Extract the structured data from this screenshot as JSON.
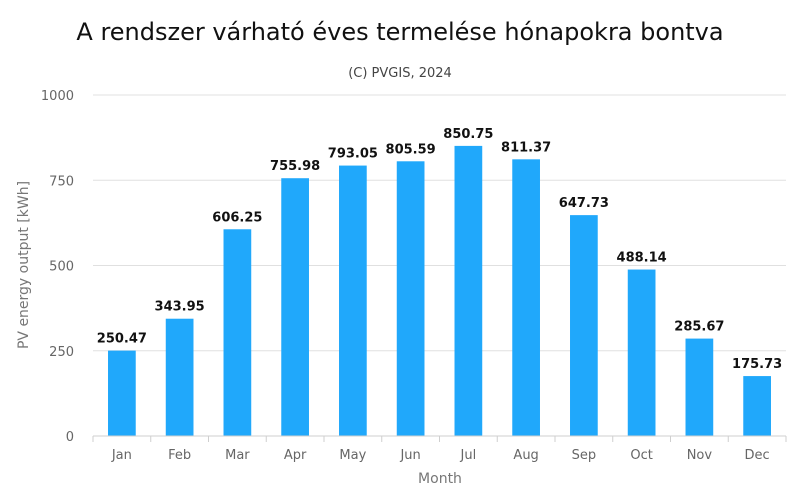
{
  "chart_data": {
    "type": "bar",
    "title": "A rendszer várható éves termelése hónapokra bontva",
    "subtitle": "(C) PVGIS, 2024",
    "xlabel": "Month",
    "ylabel": "PV energy output [kWh]",
    "categories": [
      "Jan",
      "Feb",
      "Mar",
      "Apr",
      "May",
      "Jun",
      "Jul",
      "Aug",
      "Sep",
      "Oct",
      "Nov",
      "Dec"
    ],
    "values": [
      250.47,
      343.95,
      606.25,
      755.98,
      793.05,
      805.59,
      850.75,
      811.37,
      647.73,
      488.14,
      285.67,
      175.73
    ],
    "data_labels": [
      "250.47",
      "343.95",
      "606.25",
      "755.98",
      "793.05",
      "805.59",
      "850.75",
      "811.37",
      "647.73",
      "488.14",
      "285.67",
      "175.73"
    ],
    "ylim": [
      0,
      1000
    ],
    "yticks": [
      0,
      250,
      500,
      750,
      1000
    ],
    "ytick_labels": [
      "0",
      "250",
      "500",
      "750",
      "1000"
    ],
    "grid": true,
    "legend": "none",
    "colors": {
      "bar": "#20a8fb"
    }
  }
}
